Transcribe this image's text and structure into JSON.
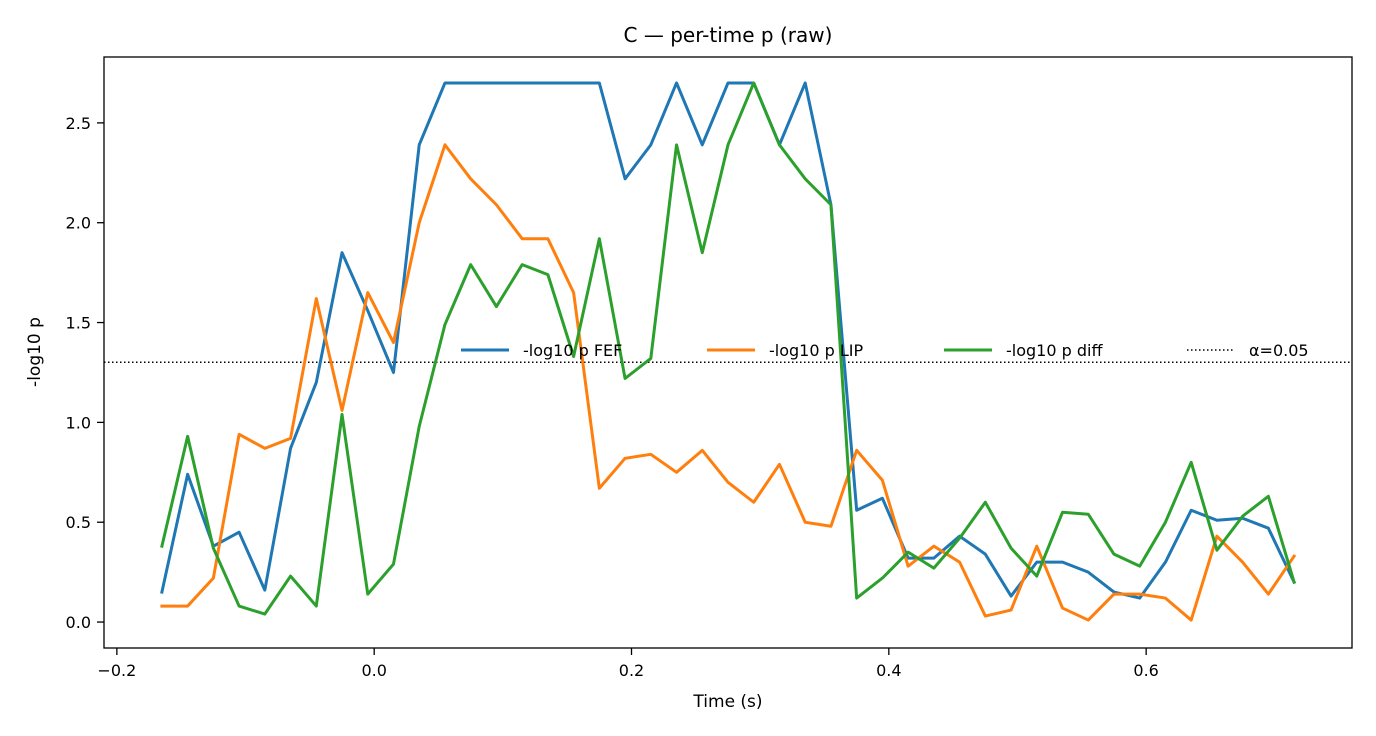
{
  "chart_data": {
    "type": "line",
    "title": "C — per-time p (raw)",
    "xlabel": "Time (s)",
    "ylabel": "-log10 p",
    "xlim": [
      -0.21,
      0.76
    ],
    "ylim": [
      -0.13,
      2.83
    ],
    "xticks": [
      -0.2,
      0.0,
      0.2,
      0.4,
      0.6
    ],
    "xtick_labels": [
      "−0.2",
      "0.0",
      "0.2",
      "0.4",
      "0.6"
    ],
    "yticks": [
      0.0,
      0.5,
      1.0,
      1.5,
      2.0,
      2.5
    ],
    "ytick_labels": [
      "0.0",
      "0.5",
      "1.0",
      "1.5",
      "2.0",
      "2.5"
    ],
    "grid": false,
    "legend_position": "center-right",
    "x": [
      -0.165,
      -0.145,
      -0.125,
      -0.105,
      -0.085,
      -0.065,
      -0.045,
      -0.025,
      -0.005,
      0.015,
      0.035,
      0.055,
      0.075,
      0.095,
      0.115,
      0.135,
      0.155,
      0.175,
      0.195,
      0.215,
      0.235,
      0.255,
      0.275,
      0.295,
      0.315,
      0.335,
      0.355,
      0.375,
      0.395,
      0.415,
      0.435,
      0.455,
      0.475,
      0.495,
      0.515,
      0.535,
      0.555,
      0.575,
      0.595,
      0.615,
      0.635,
      0.655,
      0.675,
      0.695,
      0.715
    ],
    "series": [
      {
        "name": "-log10 p FEF",
        "color": "#1f77b4",
        "values": [
          0.15,
          0.74,
          0.38,
          0.45,
          0.16,
          0.87,
          1.2,
          1.85,
          1.56,
          1.25,
          2.39,
          2.7,
          2.7,
          2.7,
          2.7,
          2.7,
          2.7,
          2.7,
          2.22,
          2.39,
          2.7,
          2.39,
          2.7,
          2.7,
          2.39,
          2.7,
          2.09,
          0.56,
          0.62,
          0.32,
          0.32,
          0.43,
          0.34,
          0.13,
          0.3,
          0.3,
          0.25,
          0.15,
          0.12,
          0.3,
          0.56,
          0.51,
          0.52,
          0.47,
          0.2
        ]
      },
      {
        "name": "-log10 p LIP",
        "color": "#ff7f0e",
        "values": [
          0.08,
          0.08,
          0.22,
          0.94,
          0.87,
          0.92,
          1.62,
          1.06,
          1.65,
          1.4,
          2.0,
          2.39,
          2.22,
          2.09,
          1.92,
          1.92,
          1.65,
          0.67,
          0.82,
          0.84,
          0.75,
          0.86,
          0.7,
          0.6,
          0.79,
          0.5,
          0.48,
          0.86,
          0.71,
          0.28,
          0.38,
          0.3,
          0.03,
          0.06,
          0.38,
          0.07,
          0.01,
          0.14,
          0.14,
          0.12,
          0.01,
          0.43,
          0.3,
          0.14,
          0.33
        ]
      },
      {
        "name": "-log10 p diff",
        "color": "#2ca02c",
        "values": [
          0.38,
          0.93,
          0.37,
          0.08,
          0.04,
          0.23,
          0.08,
          1.04,
          0.14,
          0.29,
          0.98,
          1.49,
          1.79,
          1.58,
          1.79,
          1.74,
          1.33,
          1.92,
          1.22,
          1.32,
          2.39,
          1.85,
          2.39,
          2.7,
          2.39,
          2.22,
          2.09,
          0.12,
          0.22,
          0.35,
          0.27,
          0.42,
          0.6,
          0.37,
          0.23,
          0.55,
          0.54,
          0.34,
          0.28,
          0.5,
          0.8,
          0.36,
          0.53,
          0.63,
          0.2
        ]
      }
    ],
    "hlines": [
      {
        "name": "α=0.05",
        "y": 1.301,
        "color": "#000000",
        "style": "dotted"
      }
    ]
  }
}
